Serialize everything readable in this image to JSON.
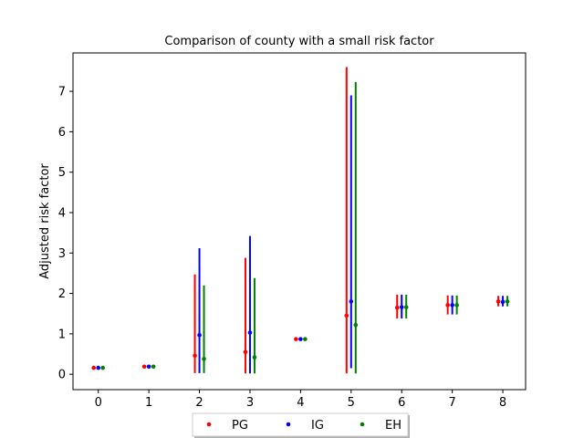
{
  "chart_data": {
    "type": "scatter",
    "title": "Comparison of county with a small risk factor",
    "xlabel": "",
    "ylabel": "Adjusted risk factor",
    "x": [
      0,
      1,
      2,
      3,
      4,
      5,
      6,
      7,
      8
    ],
    "xlim": [
      -0.5,
      8.45
    ],
    "ylim": [
      -0.38,
      7.95
    ],
    "xticks": [
      "0",
      "1",
      "2",
      "3",
      "4",
      "5",
      "6",
      "7",
      "8"
    ],
    "yticks": [
      "0",
      "1",
      "2",
      "3",
      "4",
      "5",
      "6",
      "7"
    ],
    "grid": false,
    "legend_position": "bottom-center",
    "series": [
      {
        "name": "PG",
        "color": "#ff0000",
        "values": [
          0.16,
          0.19,
          0.46,
          0.55,
          0.87,
          1.45,
          1.65,
          1.71,
          1.8
        ],
        "err_low": [
          0.16,
          0.19,
          0.03,
          0.02,
          0.87,
          0.02,
          1.38,
          1.48,
          1.68
        ],
        "err_high": [
          0.16,
          0.19,
          2.47,
          2.88,
          0.87,
          7.6,
          1.97,
          1.95,
          1.94
        ]
      },
      {
        "name": "IG",
        "color": "#0000ff",
        "values": [
          0.16,
          0.19,
          0.97,
          1.03,
          0.87,
          1.8,
          1.66,
          1.71,
          1.79
        ],
        "err_low": [
          0.16,
          0.19,
          0.03,
          0.02,
          0.87,
          0.15,
          1.38,
          1.48,
          1.68
        ],
        "err_high": [
          0.16,
          0.19,
          3.12,
          3.42,
          0.87,
          6.9,
          1.97,
          1.95,
          1.94
        ]
      },
      {
        "name": "EH",
        "color": "#008000",
        "values": [
          0.16,
          0.19,
          0.38,
          0.42,
          0.87,
          1.22,
          1.66,
          1.71,
          1.8
        ],
        "err_low": [
          0.16,
          0.19,
          0.03,
          0.02,
          0.87,
          0.02,
          1.38,
          1.48,
          1.68
        ],
        "err_high": [
          0.16,
          0.19,
          2.2,
          2.38,
          0.87,
          7.23,
          1.97,
          1.95,
          1.94
        ]
      }
    ]
  }
}
